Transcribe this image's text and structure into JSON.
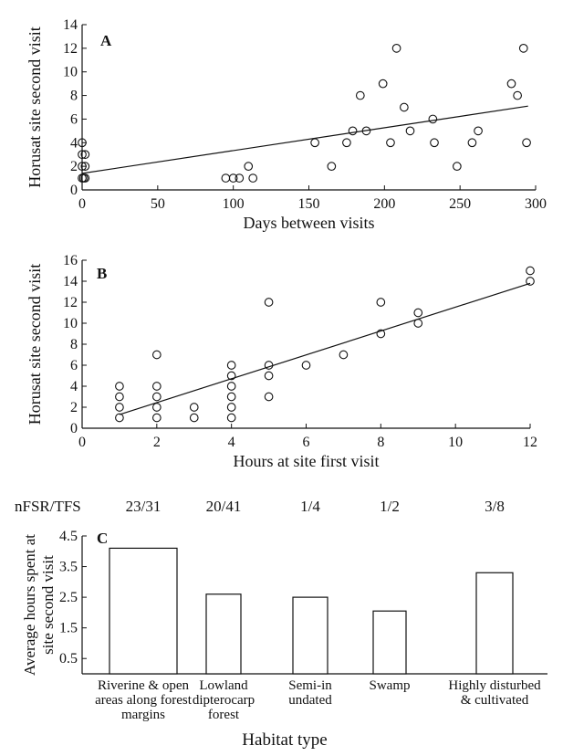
{
  "chart_data": [
    {
      "type": "scatter",
      "panel_label": "A",
      "xlabel": "Days between visits",
      "ylabel": "Horusat site second visit",
      "xlim": [
        0,
        300
      ],
      "ylim": [
        0,
        14
      ],
      "x_ticks": [
        "0",
        "50",
        "100",
        "150",
        "200",
        "250",
        "300"
      ],
      "y_ticks": [
        "0",
        "2",
        "4",
        "6",
        "8",
        "10",
        "12",
        "14"
      ],
      "points": [
        [
          0,
          4
        ],
        [
          0,
          3
        ],
        [
          0,
          2
        ],
        [
          0,
          1
        ],
        [
          1,
          1
        ],
        [
          2,
          3
        ],
        [
          2,
          2
        ],
        [
          2,
          1
        ],
        [
          95,
          1
        ],
        [
          100,
          1
        ],
        [
          104,
          1
        ],
        [
          110,
          2
        ],
        [
          113,
          1
        ],
        [
          154,
          4
        ],
        [
          165,
          2
        ],
        [
          175,
          4
        ],
        [
          179,
          5
        ],
        [
          184,
          8
        ],
        [
          188,
          5
        ],
        [
          199,
          9
        ],
        [
          204,
          4
        ],
        [
          208,
          12
        ],
        [
          213,
          7
        ],
        [
          217,
          5
        ],
        [
          232,
          6
        ],
        [
          233,
          4
        ],
        [
          248,
          2
        ],
        [
          258,
          4
        ],
        [
          262,
          5
        ],
        [
          284,
          9
        ],
        [
          288,
          8
        ],
        [
          292,
          12
        ],
        [
          294,
          4
        ]
      ],
      "trendline": [
        [
          0,
          1.4
        ],
        [
          295,
          7.1
        ]
      ]
    },
    {
      "type": "scatter",
      "panel_label": "B",
      "xlabel": "Hours at site first visit",
      "ylabel": "Horusat site second visit",
      "xlim": [
        0,
        12
      ],
      "ylim": [
        0,
        16
      ],
      "x_ticks": [
        "0",
        "2",
        "4",
        "6",
        "8",
        "10",
        "12"
      ],
      "y_ticks": [
        "0",
        "2",
        "4",
        "6",
        "8",
        "10",
        "12",
        "14",
        "16"
      ],
      "points": [
        [
          1,
          4
        ],
        [
          1,
          3
        ],
        [
          1,
          2
        ],
        [
          1,
          1
        ],
        [
          2,
          7
        ],
        [
          2,
          4
        ],
        [
          2,
          3
        ],
        [
          2,
          2
        ],
        [
          2,
          1
        ],
        [
          3,
          2
        ],
        [
          3,
          1
        ],
        [
          4,
          6
        ],
        [
          4,
          5
        ],
        [
          4,
          4
        ],
        [
          4,
          3
        ],
        [
          4,
          2
        ],
        [
          4,
          1
        ],
        [
          5,
          12
        ],
        [
          5,
          6
        ],
        [
          5,
          5
        ],
        [
          5,
          3
        ],
        [
          6,
          6
        ],
        [
          7,
          7
        ],
        [
          8,
          12
        ],
        [
          8,
          9
        ],
        [
          9,
          11
        ],
        [
          9,
          10
        ],
        [
          12,
          15
        ],
        [
          12,
          14
        ]
      ],
      "trendline": [
        [
          1,
          1.3
        ],
        [
          12,
          13.8
        ]
      ]
    },
    {
      "type": "bar",
      "panel_label": "C",
      "xlabel": "Habitat type",
      "ylabel": [
        "Average hours spent at",
        "site second visit"
      ],
      "ylim": [
        0,
        4.5
      ],
      "y_ticks": [
        "0.5",
        "1.5",
        "2.5",
        "3.5",
        "4.5"
      ],
      "ratio_header": "nFSR/TFS",
      "ratios": [
        "23/31",
        "20/41",
        "1/4",
        "1/2",
        "3/8"
      ],
      "categories": [
        [
          "Riverine & open",
          "areas along forest",
          "margins"
        ],
        [
          "Lowland",
          "dipterocarp",
          "forest"
        ],
        [
          "Semi-in",
          "undated"
        ],
        [
          "Swamp"
        ],
        [
          "Highly disturbed",
          "& cultivated"
        ]
      ],
      "values": [
        4.1,
        2.6,
        2.5,
        2.05,
        3.3
      ]
    }
  ]
}
